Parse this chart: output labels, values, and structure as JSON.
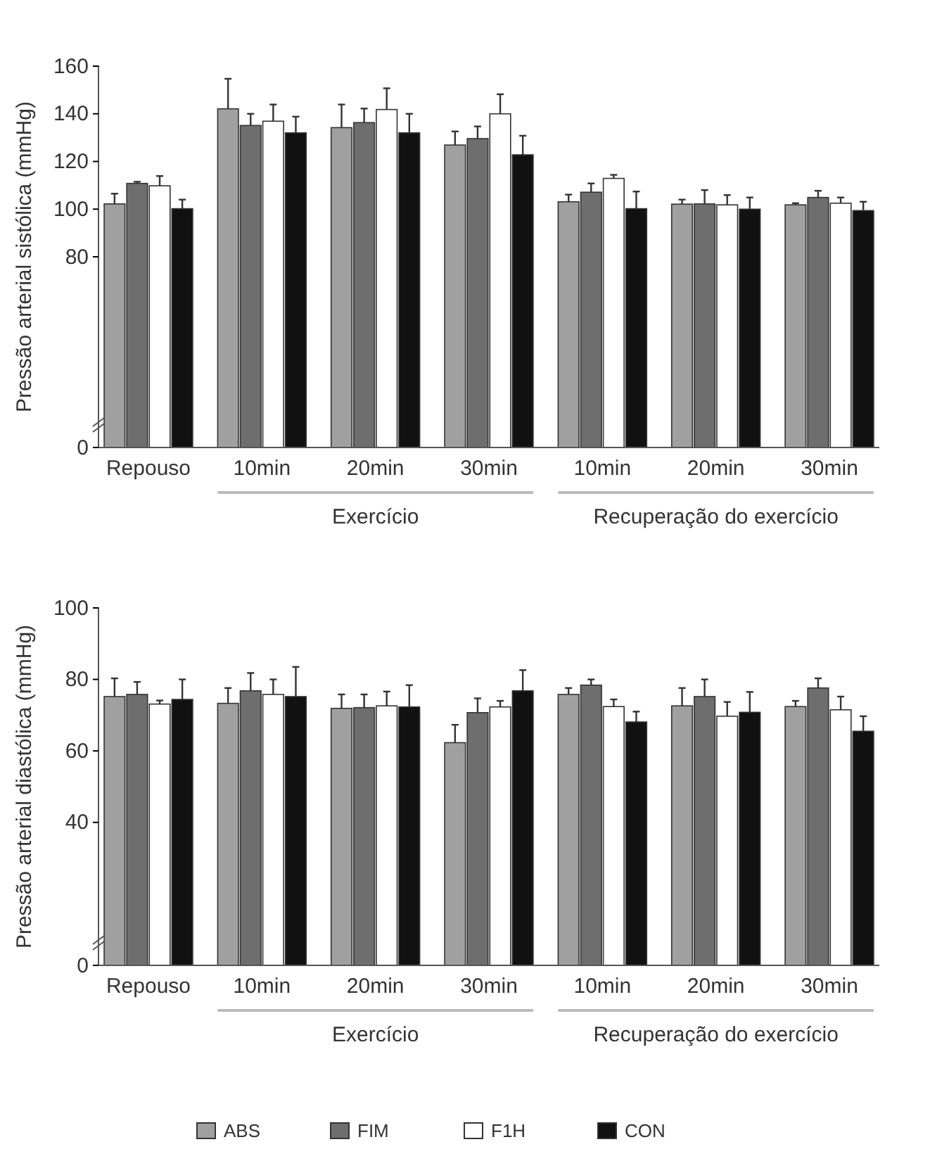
{
  "chart_data": [
    {
      "type": "bar",
      "ylabel": "Pressão arterial sistólica (mmHg)",
      "categories": [
        "Repouso",
        "10min",
        "20min",
        "30min",
        "10min",
        "20min",
        "30min"
      ],
      "ylim": [
        0,
        160
      ],
      "yticks": [
        0,
        80,
        100,
        120,
        140,
        160
      ],
      "grid": false,
      "annotations": [
        "Exercício",
        "Recuperação do exercício"
      ],
      "series": [
        {
          "color": "#a0a0a0",
          "values": [
            102.2,
            142.1,
            134.2,
            126.9,
            103.1,
            102.1,
            101.8
          ],
          "errors": [
            [
              102.2,
              106.5
            ],
            [
              142.1,
              154.7
            ],
            [
              134.2,
              143.9
            ],
            [
              126.9,
              132.6
            ],
            [
              103.1,
              106.1
            ],
            [
              102.1,
              104
            ],
            [
              101.8,
              102.5
            ]
          ]
        },
        {
          "color": "#6e6e6e",
          "values": [
            110.8,
            135.1,
            136.3,
            129.6,
            107.1,
            102.2,
            104.9
          ],
          "errors": [
            [
              110.8,
              111.5
            ],
            [
              135.1,
              140
            ],
            [
              136.3,
              142.2
            ],
            [
              129.6,
              134.7
            ],
            [
              107.1,
              110.8
            ],
            [
              102.2,
              108
            ],
            [
              104.9,
              107.7
            ]
          ]
        },
        {
          "color": "#ffffff",
          "values": [
            109.8,
            136.9,
            141.8,
            140,
            112.9,
            101.8,
            102.5
          ],
          "errors": [
            [
              109.8,
              113.9
            ],
            [
              136.9,
              143.9
            ],
            [
              141.8,
              150.7
            ],
            [
              140,
              148.2
            ],
            [
              112.9,
              114.4
            ],
            [
              101.8,
              105.9
            ],
            [
              102.5,
              104.9
            ]
          ]
        },
        {
          "color": "#111111",
          "values": [
            100.2,
            132,
            132,
            122.8,
            100.2,
            100,
            99.4
          ],
          "errors": [
            [
              100.2,
              104
            ],
            [
              132,
              138.8
            ],
            [
              132,
              140
            ],
            [
              122.8,
              130.8
            ],
            [
              100.2,
              107.4
            ],
            [
              100,
              104.9
            ],
            [
              99.4,
              103.1
            ]
          ]
        }
      ]
    },
    {
      "type": "bar",
      "ylabel": "Pressão arterial diastólica (mmHg)",
      "categories": [
        "Repouso",
        "10min",
        "20min",
        "30min",
        "10min",
        "20min",
        "30min"
      ],
      "ylim": [
        0,
        100
      ],
      "yticks": [
        0,
        40,
        60,
        80,
        100
      ],
      "grid": false,
      "legend": "bottom",
      "annotations": [
        "Exercício",
        "Recuperação do exercício"
      ],
      "series": [
        {
          "name": "ABS",
          "color": "#a0a0a0",
          "values": [
            75.2,
            73.3,
            71.9,
            62.3,
            75.8,
            72.6,
            72.4
          ],
          "errors": [
            [
              75.2,
              80.3
            ],
            [
              73.3,
              77.6
            ],
            [
              71.9,
              75.8
            ],
            [
              62.3,
              67.3
            ],
            [
              75.8,
              77.6
            ],
            [
              72.6,
              77.6
            ],
            [
              72.4,
              74
            ]
          ]
        },
        {
          "name": "FIM",
          "color": "#6e6e6e",
          "values": [
            75.8,
            76.8,
            72.1,
            70.7,
            78.4,
            75.2,
            77.6
          ],
          "errors": [
            [
              75.8,
              79.3
            ],
            [
              76.8,
              81.8
            ],
            [
              72.1,
              75.8
            ],
            [
              70.7,
              74.7
            ],
            [
              78.4,
              80
            ],
            [
              75.2,
              80
            ],
            [
              77.6,
              80.3
            ]
          ]
        },
        {
          "name": "F1H",
          "color": "#ffffff",
          "values": [
            73.1,
            75.8,
            72.6,
            72.3,
            72.4,
            69.7,
            71.5
          ],
          "errors": [
            [
              73.1,
              74.1
            ],
            [
              75.8,
              80
            ],
            [
              72.6,
              76.6
            ],
            [
              72.3,
              74
            ],
            [
              72.4,
              74.4
            ],
            [
              69.7,
              73.7
            ],
            [
              71.5,
              75.2
            ]
          ]
        },
        {
          "name": "CON",
          "color": "#111111",
          "values": [
            74.4,
            75.2,
            72.3,
            76.8,
            68.1,
            70.8,
            65.5
          ],
          "errors": [
            [
              74.4,
              80
            ],
            [
              75.2,
              83.5
            ],
            [
              72.3,
              78.4
            ],
            [
              76.8,
              82.6
            ],
            [
              68.1,
              71
            ],
            [
              70.8,
              76.5
            ],
            [
              65.5,
              69.7
            ]
          ]
        }
      ]
    }
  ]
}
